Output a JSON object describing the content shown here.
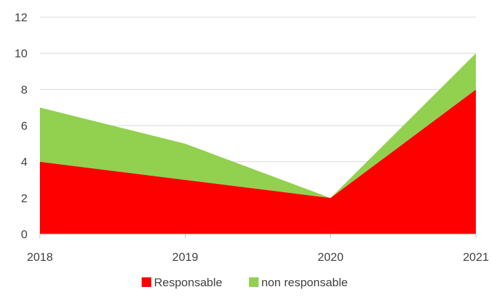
{
  "chart_data": {
    "type": "area",
    "stacked": true,
    "title": "",
    "xlabel": "",
    "ylabel": "",
    "categories": [
      "2018",
      "2019",
      "2020",
      "2021"
    ],
    "ylim": [
      0,
      12
    ],
    "yticks": [
      0,
      2,
      4,
      6,
      8,
      10,
      12
    ],
    "grid": true,
    "legend_position": "bottom",
    "series": [
      {
        "name": "Responsable",
        "values": [
          4,
          3,
          2,
          8
        ],
        "color": "#ff0000"
      },
      {
        "name": "non responsable",
        "values": [
          3,
          2,
          0,
          2
        ],
        "color": "#92d050"
      }
    ]
  }
}
